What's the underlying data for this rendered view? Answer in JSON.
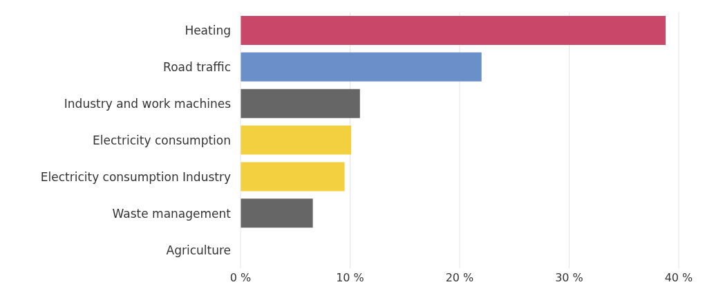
{
  "chart_data": {
    "type": "bar",
    "orientation": "horizontal",
    "categories": [
      "Heating",
      "Road traffic",
      "Industry and work machines",
      "Electricity consumption",
      "Electricity consumption  Industry",
      "Waste management",
      "Agriculture"
    ],
    "values": [
      38.8,
      22.0,
      10.9,
      10.1,
      9.5,
      6.6,
      0
    ],
    "colors": [
      "#c9486a",
      "#6a8fc9",
      "#666666",
      "#f2d03f",
      "#f2d03f",
      "#666666",
      "#666666"
    ],
    "xlim": [
      0,
      40
    ],
    "xticks": [
      {
        "value": 0,
        "label": "0 %"
      },
      {
        "value": 10,
        "label": "10 %"
      },
      {
        "value": 20,
        "label": "20 %"
      },
      {
        "value": 30,
        "label": "30 %"
      },
      {
        "value": 40,
        "label": "40 %"
      }
    ],
    "grid": "x"
  }
}
